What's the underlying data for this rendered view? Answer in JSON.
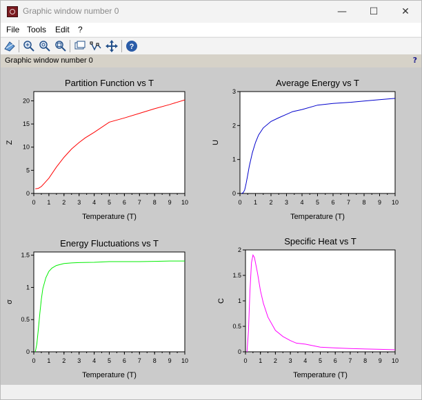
{
  "window": {
    "title": "Graphic window number 0",
    "controls": {
      "minimize": "—",
      "maximize": "☐",
      "close": "✕"
    }
  },
  "menu": {
    "items": [
      "File",
      "Tools",
      "Edit",
      "?"
    ]
  },
  "toolbar": {
    "tools": [
      "rotate-icon",
      "zoom-in-icon",
      "zoom-reset-icon",
      "zoom-area-icon",
      "datatip-icon",
      "curve-edit-icon",
      "move-icon",
      "help-icon"
    ]
  },
  "infobar": {
    "text": "Graphic window number 0",
    "help": "?"
  },
  "colors": {
    "canvas_bg": "#cbcbcb",
    "partition": "#ff0000",
    "energy": "#0000cc",
    "fluct": "#00ee00",
    "heat": "#ff00ff"
  },
  "chart_data": [
    {
      "type": "line",
      "title": "Partition Function vs T",
      "xlabel": "Temperature (T)",
      "ylabel": "Z",
      "xlim": [
        0,
        10
      ],
      "ylim": [
        0,
        22
      ],
      "xticks": [
        0,
        1,
        2,
        3,
        4,
        5,
        6,
        7,
        8,
        9,
        10
      ],
      "yticks": [
        0,
        5,
        10,
        15,
        20
      ],
      "color": "#ff0000",
      "x": [
        0.1,
        0.3,
        0.5,
        0.7,
        1.0,
        1.5,
        2.0,
        2.5,
        3.0,
        3.4,
        4.0,
        5.0,
        6.0,
        7.0,
        8.0,
        9.0,
        10.0
      ],
      "y": [
        1.0,
        1.1,
        1.5,
        2.2,
        3.3,
        5.7,
        7.8,
        9.6,
        11.0,
        12.0,
        13.2,
        15.4,
        16.3,
        17.3,
        18.3,
        19.2,
        20.2
      ]
    },
    {
      "type": "line",
      "title": "Average Energy vs T",
      "xlabel": "Temperature (T)",
      "ylabel": "U",
      "xlim": [
        0,
        10
      ],
      "ylim": [
        0,
        3
      ],
      "xticks": [
        0,
        1,
        2,
        3,
        4,
        5,
        6,
        7,
        8,
        9,
        10
      ],
      "yticks": [
        0,
        1,
        2,
        3
      ],
      "color": "#0000cc",
      "x": [
        0.1,
        0.2,
        0.3,
        0.4,
        0.5,
        0.6,
        0.8,
        1.0,
        1.2,
        1.5,
        2.0,
        2.5,
        3.0,
        3.4,
        4.0,
        5.0,
        6.0,
        7.0,
        8.0,
        9.0,
        10.0
      ],
      "y": [
        0.0,
        0.02,
        0.1,
        0.3,
        0.55,
        0.8,
        1.2,
        1.5,
        1.72,
        1.93,
        2.12,
        2.23,
        2.33,
        2.41,
        2.47,
        2.6,
        2.65,
        2.68,
        2.72,
        2.76,
        2.8
      ]
    },
    {
      "type": "line",
      "title": "Energy Fluctuations vs T",
      "xlabel": "Temperature (T)",
      "ylabel": "σ",
      "xlim": [
        0,
        10
      ],
      "ylim": [
        0,
        1.55
      ],
      "xticks": [
        0,
        1,
        2,
        3,
        4,
        5,
        6,
        7,
        8,
        9,
        10
      ],
      "yticks": [
        0,
        0.5,
        1,
        1.5
      ],
      "color": "#00ee00",
      "x": [
        0.1,
        0.2,
        0.3,
        0.4,
        0.5,
        0.6,
        0.8,
        1.0,
        1.2,
        1.5,
        2.0,
        2.5,
        3.0,
        4.0,
        5.0,
        6.0,
        7.0,
        8.0,
        9.0,
        10.0
      ],
      "y": [
        0.0,
        0.12,
        0.35,
        0.6,
        0.82,
        0.98,
        1.15,
        1.25,
        1.3,
        1.34,
        1.37,
        1.38,
        1.385,
        1.39,
        1.4,
        1.4,
        1.4,
        1.405,
        1.41,
        1.41
      ]
    },
    {
      "type": "line",
      "title": "Specific Heat vs T",
      "xlabel": "Temperature (T)",
      "ylabel": "C",
      "xlim": [
        0,
        10
      ],
      "ylim": [
        0,
        2
      ],
      "xticks": [
        0,
        1,
        2,
        3,
        4,
        5,
        6,
        7,
        8,
        9,
        10
      ],
      "yticks": [
        0,
        0.5,
        1,
        1.5,
        2
      ],
      "color": "#ff00ff",
      "x": [
        0.1,
        0.2,
        0.3,
        0.4,
        0.5,
        0.6,
        0.8,
        1.0,
        1.2,
        1.5,
        2.0,
        2.5,
        3.0,
        3.4,
        4.0,
        5.0,
        6.0,
        7.0,
        8.0,
        9.0,
        10.0
      ],
      "y": [
        0.0,
        0.4,
        1.2,
        1.75,
        1.9,
        1.85,
        1.55,
        1.2,
        0.95,
        0.68,
        0.42,
        0.3,
        0.22,
        0.17,
        0.15,
        0.09,
        0.075,
        0.065,
        0.055,
        0.048,
        0.04
      ]
    }
  ]
}
